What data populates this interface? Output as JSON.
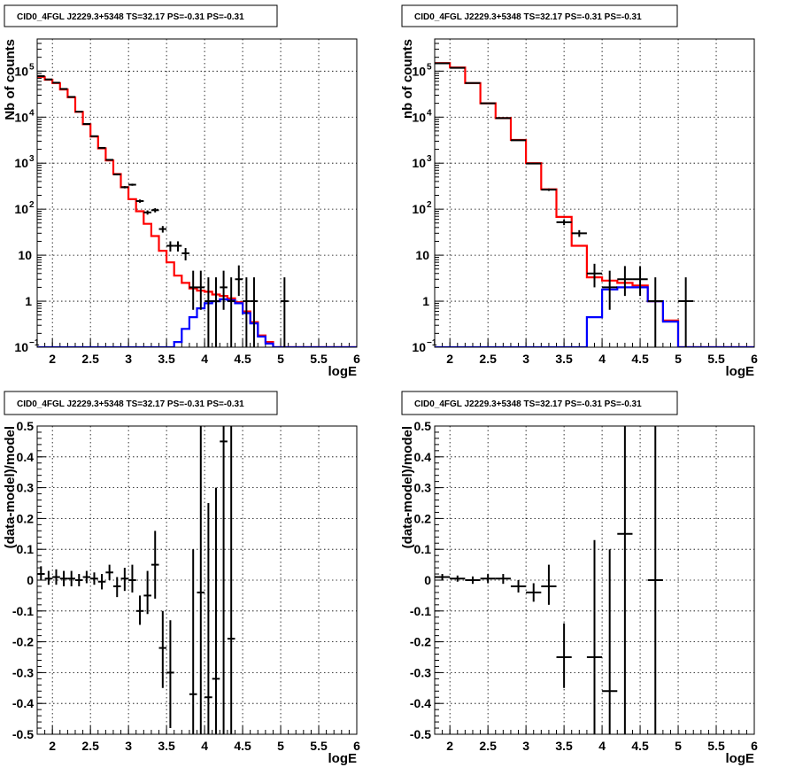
{
  "chart_data": [
    {
      "panel": "top-left",
      "type": "line",
      "title": "CID0_4FGL J2229.3+5348 TS=32.17 PS=-0.31 PS=-0.31",
      "xlabel": "logE",
      "ylabel": "Nb of counts",
      "xlim": [
        1.8,
        6.0
      ],
      "ylim": [
        0.1,
        500000
      ],
      "yscale": "log",
      "grid": true,
      "xticks": [
        "2",
        "2.5",
        "3",
        "3.5",
        "4",
        "4.5",
        "5",
        "5.5",
        "6"
      ],
      "yticks": [
        {
          "v": 0.1,
          "base": "10",
          "exp": "−1"
        },
        {
          "v": 1,
          "base": "1",
          "exp": ""
        },
        {
          "v": 10,
          "base": "10",
          "exp": ""
        },
        {
          "v": 100,
          "base": "10",
          "exp": "2"
        },
        {
          "v": 1000,
          "base": "10",
          "exp": "3"
        },
        {
          "v": 10000,
          "base": "10",
          "exp": "4"
        },
        {
          "v": 100000,
          "base": "10",
          "exp": "5"
        }
      ],
      "bin_width": 0.1,
      "series": [
        {
          "color": "#ff0000",
          "kind": "step",
          "x0": 1.8,
          "values": [
            75000,
            65000,
            55000,
            40000,
            27000,
            13000,
            7000,
            3800,
            2100,
            1150,
            580,
            300,
            165,
            90,
            48,
            26,
            12.5,
            7,
            3.6,
            2.5,
            1.9,
            1.7,
            1.6,
            1.4,
            1.3,
            1.15,
            0.95,
            0.6,
            0.35,
            0.18,
            0.13,
            0.1,
            0.1,
            0.1,
            0.1,
            0.1,
            0.1,
            0.1,
            0.1,
            0.1,
            0.1,
            0.1
          ]
        },
        {
          "color": "#0000ff",
          "kind": "step",
          "x0": 1.8,
          "values": [
            0.1,
            0.1,
            0.1,
            0.1,
            0.1,
            0.1,
            0.1,
            0.1,
            0.1,
            0.1,
            0.1,
            0.1,
            0.1,
            0.1,
            0.1,
            0.1,
            0.1,
            0.1,
            0.13,
            0.25,
            0.45,
            0.7,
            0.9,
            1.0,
            1.1,
            1.05,
            0.9,
            0.55,
            0.33,
            0.17,
            0.12,
            0.1,
            0.1,
            0.1,
            0.1,
            0.1,
            0.1,
            0.1,
            0.1,
            0.1,
            0.1,
            0.1
          ]
        },
        {
          "color": "#000000",
          "kind": "points",
          "points": [
            {
              "x": 1.85,
              "y": 78000,
              "lo": 77000,
              "hi": 79000
            },
            {
              "x": 1.95,
              "y": 66000,
              "lo": 65000,
              "hi": 67000
            },
            {
              "x": 2.05,
              "y": 56000,
              "lo": 55000,
              "hi": 57000
            },
            {
              "x": 2.15,
              "y": 41000,
              "lo": 40500,
              "hi": 41500
            },
            {
              "x": 2.25,
              "y": 27500,
              "lo": 27000,
              "hi": 28000
            },
            {
              "x": 2.35,
              "y": 13200,
              "lo": 13000,
              "hi": 13400
            },
            {
              "x": 2.45,
              "y": 7100,
              "lo": 7000,
              "hi": 7200
            },
            {
              "x": 2.55,
              "y": 3850,
              "lo": 3780,
              "hi": 3920
            },
            {
              "x": 2.65,
              "y": 2150,
              "lo": 2100,
              "hi": 2200
            },
            {
              "x": 2.75,
              "y": 1180,
              "lo": 1140,
              "hi": 1220
            },
            {
              "x": 2.85,
              "y": 570,
              "lo": 545,
              "hi": 595
            },
            {
              "x": 2.95,
              "y": 300,
              "lo": 283,
              "hi": 317
            },
            {
              "x": 3.05,
              "y": 340,
              "lo": 322,
              "hi": 358
            },
            {
              "x": 3.15,
              "y": 150,
              "lo": 138,
              "hi": 162
            },
            {
              "x": 3.25,
              "y": 85,
              "lo": 76,
              "hi": 94
            },
            {
              "x": 3.35,
              "y": 95,
              "lo": 85,
              "hi": 105
            },
            {
              "x": 3.45,
              "y": 37,
              "lo": 31,
              "hi": 43
            },
            {
              "x": 3.55,
              "y": 16,
              "lo": 12,
              "hi": 20
            },
            {
              "x": 3.65,
              "y": 16,
              "lo": 12,
              "hi": 20
            },
            {
              "x": 3.75,
              "y": 11,
              "lo": 7.7,
              "hi": 14.3
            },
            {
              "x": 3.85,
              "y": 2,
              "lo": 0.65,
              "hi": 4.6
            },
            {
              "x": 3.95,
              "y": 2,
              "lo": 0.65,
              "hi": 4.6
            },
            {
              "x": 4.05,
              "y": 1,
              "lo": 0.1,
              "hi": 3.3
            },
            {
              "x": 4.15,
              "y": 1,
              "lo": 0.1,
              "hi": 3.3
            },
            {
              "x": 4.25,
              "y": 2,
              "lo": 0.65,
              "hi": 4.6
            },
            {
              "x": 4.35,
              "y": 1,
              "lo": 0.1,
              "hi": 3.3
            },
            {
              "x": 4.45,
              "y": 3,
              "lo": 1.3,
              "hi": 6
            },
            {
              "x": 4.55,
              "y": 1,
              "lo": 0.1,
              "hi": 3.3
            },
            {
              "x": 4.65,
              "y": 1,
              "lo": 0.1,
              "hi": 3.3
            },
            {
              "x": 5.05,
              "y": 1,
              "lo": 0.1,
              "hi": 3.3
            }
          ]
        }
      ]
    },
    {
      "panel": "top-right",
      "type": "line",
      "title": "CID0_4FGL J2229.3+5348 TS=32.17 PS=-0.31 PS=-0.31",
      "xlabel": "logE",
      "ylabel": "nb of counts",
      "xlim": [
        1.8,
        6.0
      ],
      "ylim": [
        0.1,
        500000
      ],
      "yscale": "log",
      "grid": true,
      "xticks": [
        "2",
        "2.5",
        "3",
        "3.5",
        "4",
        "4.5",
        "5",
        "5.5",
        "6"
      ],
      "yticks": [
        {
          "v": 0.1,
          "base": "10",
          "exp": "−1"
        },
        {
          "v": 1,
          "base": "1",
          "exp": ""
        },
        {
          "v": 10,
          "base": "10",
          "exp": ""
        },
        {
          "v": 100,
          "base": "10",
          "exp": "2"
        },
        {
          "v": 1000,
          "base": "10",
          "exp": "3"
        },
        {
          "v": 10000,
          "base": "10",
          "exp": "4"
        },
        {
          "v": 100000,
          "base": "10",
          "exp": "5"
        }
      ],
      "bin_width": 0.2,
      "series": [
        {
          "color": "#ff0000",
          "kind": "step",
          "x0": 1.8,
          "values": [
            150000,
            120000,
            55000,
            20000,
            9500,
            3200,
            1000,
            270,
            68,
            16,
            3.3,
            2.8,
            2.5,
            2.2,
            1.0,
            0.38,
            0.1,
            0.1,
            0.1,
            0.1,
            0.1
          ]
        },
        {
          "color": "#0000ff",
          "kind": "step",
          "x0": 1.8,
          "values": [
            0.1,
            0.1,
            0.1,
            0.1,
            0.1,
            0.1,
            0.1,
            0.1,
            0.1,
            0.1,
            0.45,
            1.8,
            2.0,
            2.0,
            1.0,
            0.36,
            0.1,
            0.1,
            0.1,
            0.1,
            0.1
          ]
        },
        {
          "color": "#000000",
          "kind": "points",
          "points": [
            {
              "x": 1.9,
              "y": 148000,
              "lo": 147000,
              "hi": 149000
            },
            {
              "x": 2.1,
              "y": 118000,
              "lo": 117000,
              "hi": 119000
            },
            {
              "x": 2.3,
              "y": 55000,
              "lo": 54500,
              "hi": 55500
            },
            {
              "x": 2.5,
              "y": 20000,
              "lo": 19800,
              "hi": 20200
            },
            {
              "x": 2.7,
              "y": 9500,
              "lo": 9400,
              "hi": 9600
            },
            {
              "x": 2.9,
              "y": 3150,
              "lo": 3090,
              "hi": 3210
            },
            {
              "x": 3.1,
              "y": 980,
              "lo": 950,
              "hi": 1010
            },
            {
              "x": 3.3,
              "y": 265,
              "lo": 249,
              "hi": 281
            },
            {
              "x": 3.5,
              "y": 52,
              "lo": 45,
              "hi": 59
            },
            {
              "x": 3.7,
              "y": 30,
              "lo": 25,
              "hi": 35
            },
            {
              "x": 3.9,
              "y": 4,
              "lo": 2,
              "hi": 6.5
            },
            {
              "x": 4.1,
              "y": 2,
              "lo": 0.65,
              "hi": 4.6
            },
            {
              "x": 4.3,
              "y": 3,
              "lo": 1.3,
              "hi": 5.8
            },
            {
              "x": 4.5,
              "y": 3,
              "lo": 1.3,
              "hi": 5.8
            },
            {
              "x": 4.7,
              "y": 1,
              "lo": 0.1,
              "hi": 3.3
            },
            {
              "x": 5.1,
              "y": 1,
              "lo": 0.1,
              "hi": 3.3
            }
          ]
        }
      ]
    },
    {
      "panel": "bottom-left",
      "type": "scatter",
      "title": "CID0_4FGL J2229.3+5348 TS=32.17 PS=-0.31 PS=-0.31",
      "xlabel": "logE",
      "ylabel": "(data-model)/model",
      "xlim": [
        1.8,
        6.0
      ],
      "ylim": [
        -0.5,
        0.5
      ],
      "yscale": "linear",
      "grid": true,
      "xticks": [
        "2",
        "2.5",
        "3",
        "3.5",
        "4",
        "4.5",
        "5",
        "5.5",
        "6"
      ],
      "yticks_lin": [
        "-0.5",
        "-0.4",
        "-0.3",
        "-0.2",
        "-0.1",
        "0",
        "0.1",
        "0.2",
        "0.3",
        "0.4",
        "0.5"
      ],
      "bin_width": 0.1,
      "series": [
        {
          "color": "#000000",
          "kind": "points",
          "points": [
            {
              "x": 1.85,
              "y": 0.02,
              "lo": 0.0,
              "hi": 0.045
            },
            {
              "x": 1.95,
              "y": 0.005,
              "lo": -0.015,
              "hi": 0.03
            },
            {
              "x": 2.05,
              "y": 0.01,
              "lo": -0.015,
              "hi": 0.035
            },
            {
              "x": 2.15,
              "y": 0.005,
              "lo": -0.02,
              "hi": 0.03
            },
            {
              "x": 2.25,
              "y": 0.005,
              "lo": -0.02,
              "hi": 0.03
            },
            {
              "x": 2.35,
              "y": 0.0,
              "lo": -0.02,
              "hi": 0.02
            },
            {
              "x": 2.45,
              "y": 0.01,
              "lo": -0.01,
              "hi": 0.03
            },
            {
              "x": 2.55,
              "y": 0.005,
              "lo": -0.015,
              "hi": 0.025
            },
            {
              "x": 2.65,
              "y": -0.005,
              "lo": -0.03,
              "hi": 0.02
            },
            {
              "x": 2.75,
              "y": 0.025,
              "lo": 0.0,
              "hi": 0.05
            },
            {
              "x": 2.85,
              "y": -0.02,
              "lo": -0.055,
              "hi": 0.01
            },
            {
              "x": 2.95,
              "y": 0.005,
              "lo": -0.035,
              "hi": 0.04
            },
            {
              "x": 3.05,
              "y": 0.0,
              "lo": -0.04,
              "hi": 0.05
            },
            {
              "x": 3.15,
              "y": -0.1,
              "lo": -0.145,
              "hi": -0.05
            },
            {
              "x": 3.25,
              "y": -0.05,
              "lo": -0.11,
              "hi": 0.03
            },
            {
              "x": 3.35,
              "y": 0.05,
              "lo": -0.06,
              "hi": 0.16
            },
            {
              "x": 3.45,
              "y": -0.22,
              "lo": -0.35,
              "hi": -0.1
            },
            {
              "x": 3.55,
              "y": -0.3,
              "lo": -0.48,
              "hi": -0.13
            },
            {
              "x": 3.85,
              "y": -0.37,
              "lo": -0.5,
              "hi": 0.1
            },
            {
              "x": 3.95,
              "y": -0.04,
              "lo": -0.5,
              "hi": 0.5
            },
            {
              "x": 4.05,
              "y": -0.38,
              "lo": -0.5,
              "hi": 0.25
            },
            {
              "x": 4.15,
              "y": -0.32,
              "lo": -0.5,
              "hi": 0.3
            },
            {
              "x": 4.25,
              "y": 0.45,
              "lo": -0.5,
              "hi": 0.5
            },
            {
              "x": 4.35,
              "y": -0.19,
              "lo": -0.5,
              "hi": 0.5
            }
          ]
        }
      ]
    },
    {
      "panel": "bottom-right",
      "type": "scatter",
      "title": "CID0_4FGL J2229.3+5348 TS=32.17 PS=-0.31 PS=-0.31",
      "xlabel": "logE",
      "ylabel": "(data-model)/model",
      "xlim": [
        1.8,
        6.0
      ],
      "ylim": [
        -0.5,
        0.5
      ],
      "yscale": "linear",
      "grid": true,
      "xticks": [
        "2",
        "2.5",
        "3",
        "3.5",
        "4",
        "4.5",
        "5",
        "5.5",
        "6"
      ],
      "yticks_lin": [
        "-0.5",
        "-0.4",
        "-0.3",
        "-0.2",
        "-0.1",
        "0",
        "0.1",
        "0.2",
        "0.3",
        "0.4",
        "0.5"
      ],
      "bin_width": 0.2,
      "series": [
        {
          "color": "#000000",
          "kind": "points",
          "points": [
            {
              "x": 1.9,
              "y": 0.01,
              "lo": 0.0,
              "hi": 0.02
            },
            {
              "x": 2.1,
              "y": 0.005,
              "lo": -0.005,
              "hi": 0.015
            },
            {
              "x": 2.3,
              "y": 0.0,
              "lo": -0.012,
              "hi": 0.012
            },
            {
              "x": 2.5,
              "y": 0.005,
              "lo": -0.01,
              "hi": 0.02
            },
            {
              "x": 2.7,
              "y": 0.005,
              "lo": -0.012,
              "hi": 0.02
            },
            {
              "x": 2.9,
              "y": -0.02,
              "lo": -0.04,
              "hi": 0.0
            },
            {
              "x": 3.1,
              "y": -0.04,
              "lo": -0.07,
              "hi": -0.01
            },
            {
              "x": 3.3,
              "y": -0.02,
              "lo": -0.08,
              "hi": 0.05
            },
            {
              "x": 3.5,
              "y": -0.25,
              "lo": -0.35,
              "hi": -0.14
            },
            {
              "x": 3.9,
              "y": -0.25,
              "lo": -0.5,
              "hi": 0.13
            },
            {
              "x": 4.1,
              "y": -0.36,
              "lo": -0.5,
              "hi": 0.1
            },
            {
              "x": 4.3,
              "y": 0.15,
              "lo": -0.5,
              "hi": 0.5
            },
            {
              "x": 4.7,
              "y": 0.0,
              "lo": -0.5,
              "hi": 0.5
            }
          ]
        }
      ]
    }
  ]
}
